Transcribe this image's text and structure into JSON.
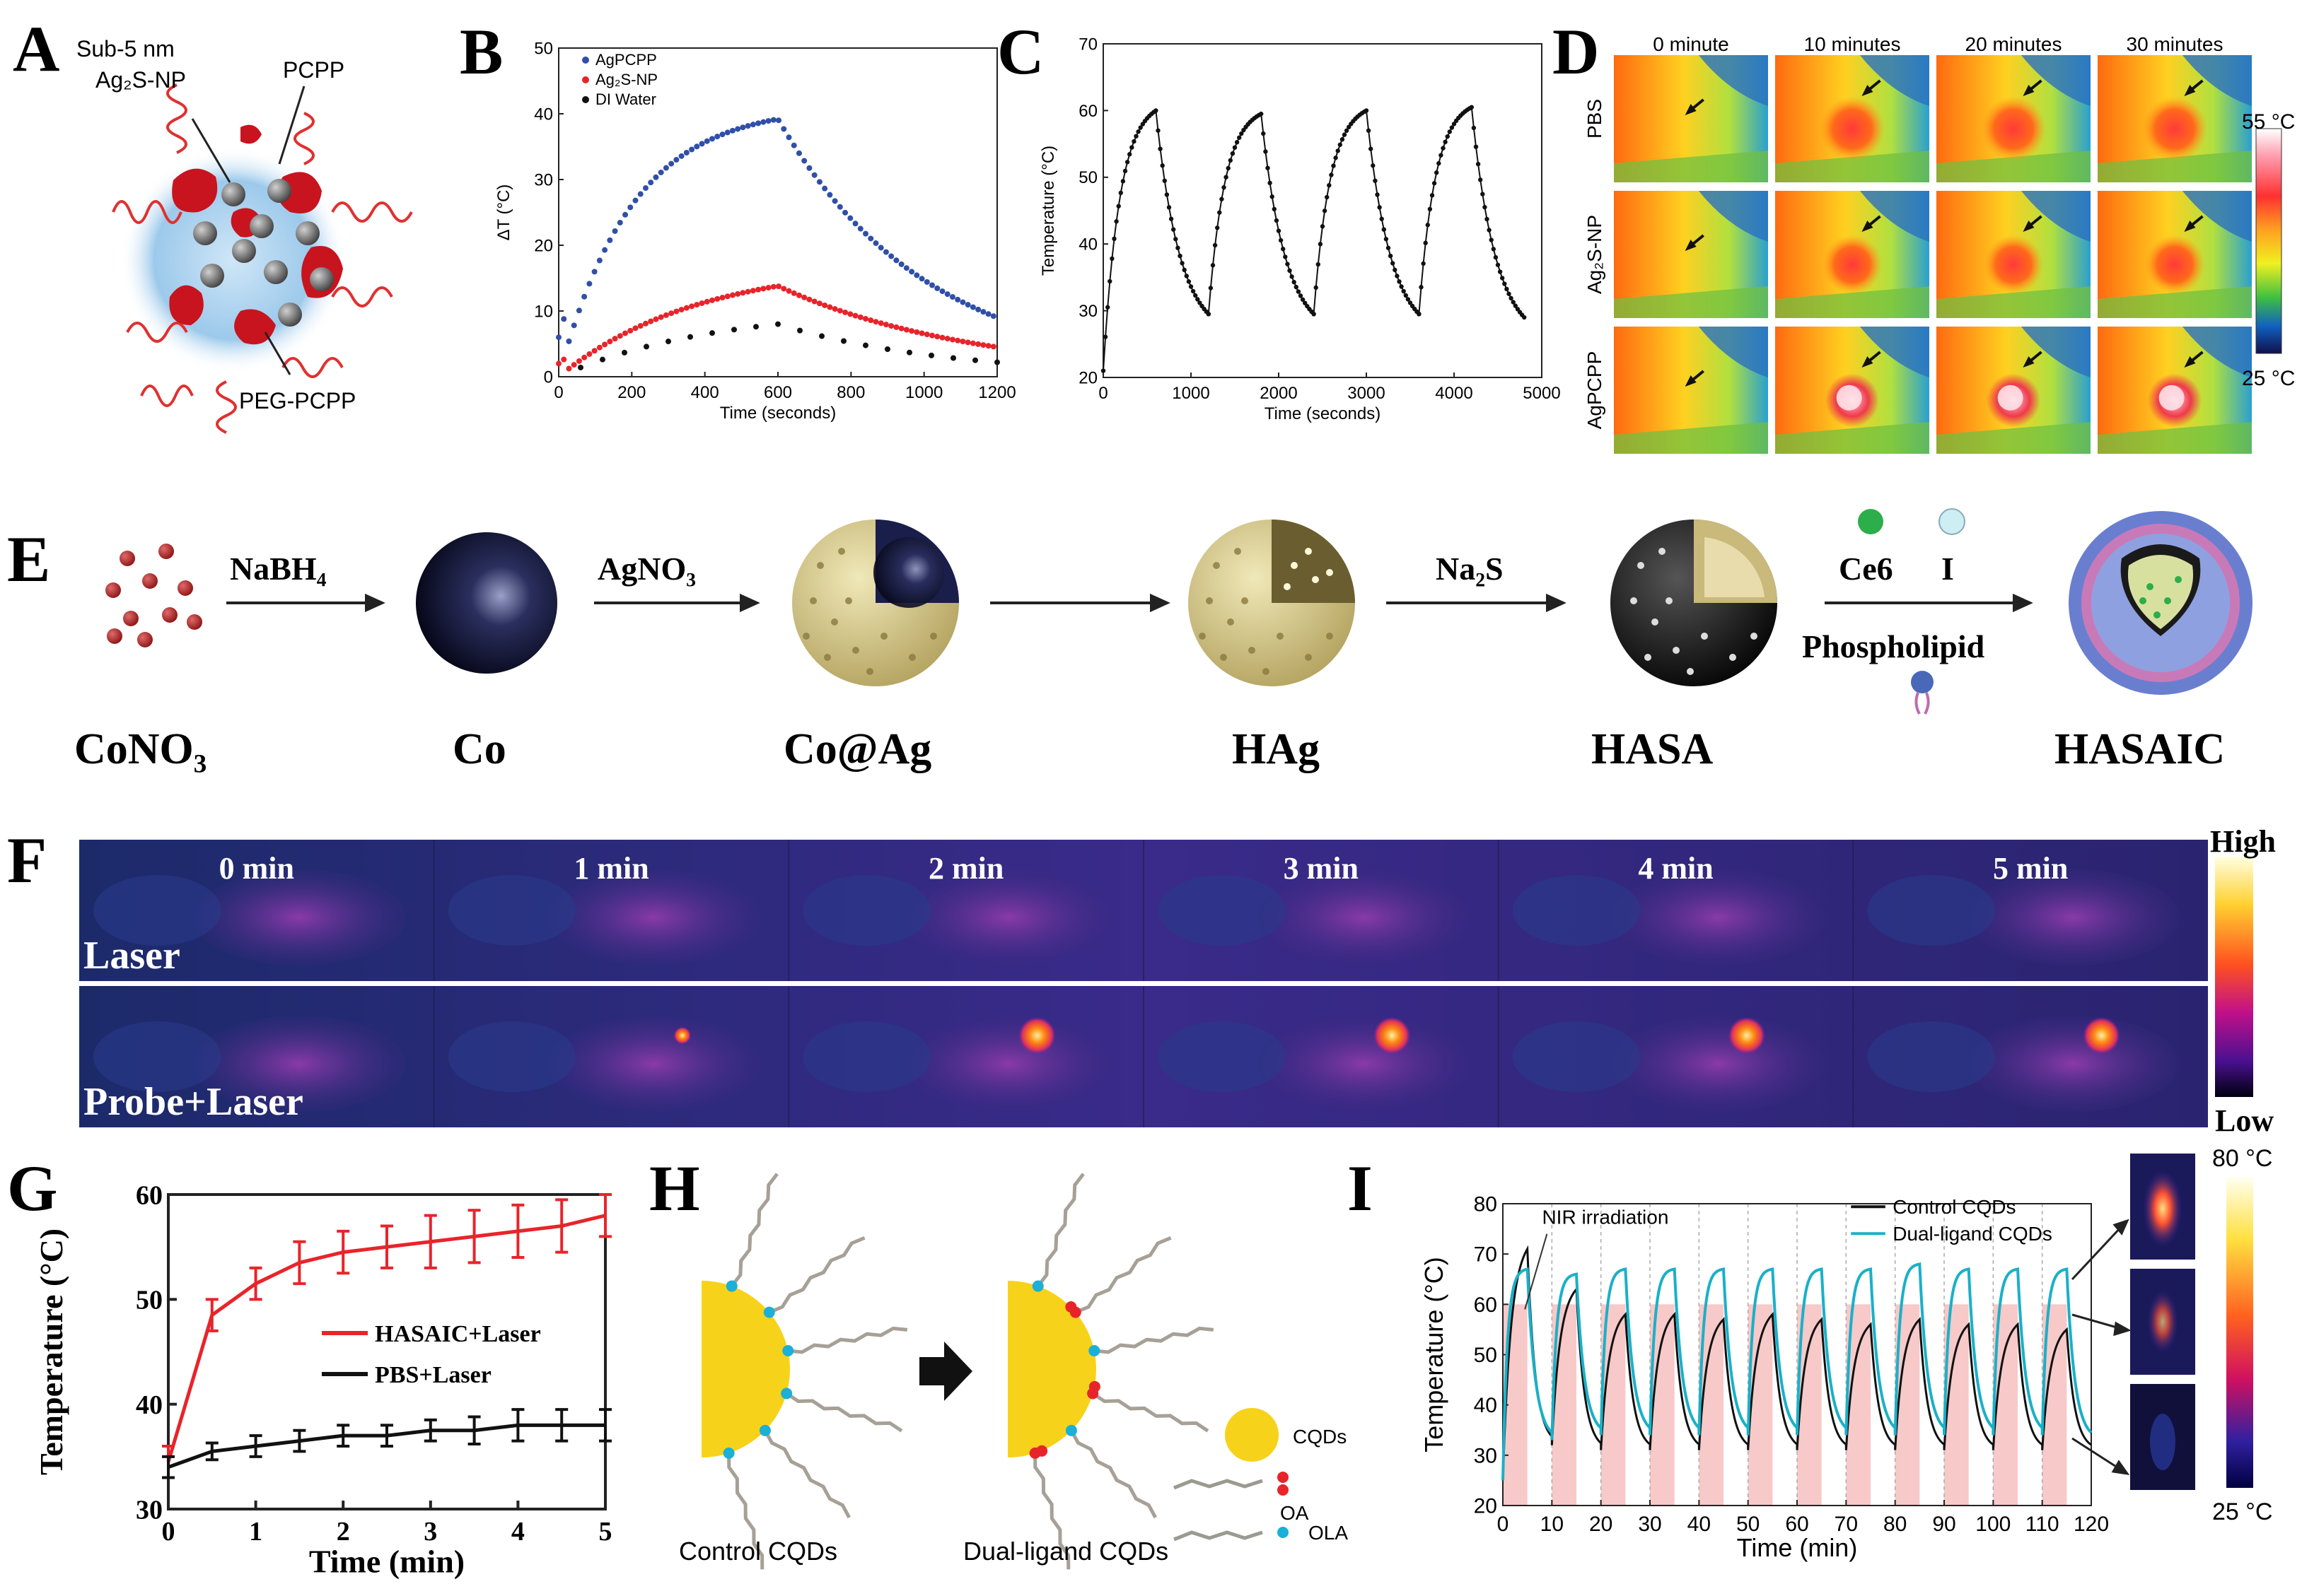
{
  "panels": {
    "A": "A",
    "B": "B",
    "C": "C",
    "D": "D",
    "E": "E",
    "F": "F",
    "G": "G",
    "H": "H",
    "I": "I"
  },
  "panel_a": {
    "label_np": "Sub-5 nm",
    "label_np2": "Ag₂S-NP",
    "label_pcpp": "PCPP",
    "label_peg": "PEG-PCPP"
  },
  "panel_d": {
    "columns": [
      "0 minute",
      "10 minutes",
      "20 minutes",
      "30 minutes"
    ],
    "rows": [
      "PBS",
      "Ag₂S-NP",
      "AgPCPP"
    ],
    "scale_max": "55 °C",
    "scale_min": "25 °C"
  },
  "panel_e": {
    "reagents": [
      "NaBH₄",
      "AgNO₃",
      "Na₂S",
      "Ce6",
      "I",
      "Phospholipid"
    ],
    "products": [
      "CoNO₃",
      "Co",
      "Co@Ag",
      "HAg",
      "HASA",
      "HASAIC"
    ]
  },
  "panel_f": {
    "times": [
      "0 min",
      "1 min",
      "2 min",
      "3 min",
      "4 min",
      "5 min"
    ],
    "rows": [
      "Laser",
      "Probe+Laser"
    ],
    "scale_high": "High",
    "scale_low": "Low"
  },
  "panel_h": {
    "label_left": "Control CQDs",
    "label_right": "Dual-ligand CQDs",
    "legend": [
      "CQDs",
      "OA",
      "OLA"
    ]
  },
  "panel_i_images": {
    "scale_max": "80 °C",
    "scale_min": "25 °C"
  },
  "colors": {
    "blue": "#2f4fa8",
    "red": "#e8242b",
    "black": "#111111",
    "cyan": "#1ab0c8",
    "shade": "#f7c9c9"
  },
  "chart_data": [
    {
      "id": "B",
      "type": "scatter",
      "xlabel": "Time (seconds)",
      "ylabel": "ΔT (°C)",
      "xlim": [
        0,
        1200
      ],
      "ylim": [
        0,
        50
      ],
      "xticks": [
        0,
        200,
        400,
        600,
        800,
        1000,
        1200
      ],
      "yticks": [
        0,
        10,
        20,
        30,
        40,
        50
      ],
      "legend": [
        "AgPCPP",
        "Ag₂S-NP",
        "DI Water"
      ],
      "series": [
        {
          "name": "AgPCPP",
          "heat_plateau": 39.2,
          "heat_tau": 200,
          "cool_tau": 420,
          "end": 9.0
        },
        {
          "name": "Ag₂S-NP",
          "heat_plateau": 13.8,
          "heat_tau": 380,
          "cool_tau": 420,
          "end": 4.5
        },
        {
          "name": "DI Water",
          "heat_plateau": 8.0,
          "heat_tau": 420,
          "cool_tau": 500,
          "end": 2.2
        }
      ]
    },
    {
      "id": "C",
      "type": "line",
      "xlabel": "Time (seconds)",
      "ylabel": "Temperature (°C)",
      "xlim": [
        0,
        5000
      ],
      "ylim": [
        20,
        70
      ],
      "xticks": [
        0,
        1000,
        2000,
        3000,
        4000,
        5000
      ],
      "yticks": [
        20,
        30,
        40,
        50,
        60,
        70
      ],
      "cycles": [
        {
          "start": 0,
          "peak_t": 600,
          "peak": 60,
          "end_t": 1200,
          "low": 29.5
        },
        {
          "start": 1200,
          "peak_t": 1800,
          "peak": 59.5,
          "end_t": 2400,
          "low": 29.5
        },
        {
          "start": 2400,
          "peak_t": 3000,
          "peak": 60,
          "end_t": 3600,
          "low": 29.5
        },
        {
          "start": 3600,
          "peak_t": 4200,
          "peak": 60.5,
          "end_t": 4800,
          "low": 29.0
        }
      ],
      "start_temp": 21
    },
    {
      "id": "G",
      "type": "line",
      "xlabel": "Time (min)",
      "ylabel": "Temperature (°C)",
      "xlim": [
        0,
        5
      ],
      "ylim": [
        30,
        60
      ],
      "xticks": [
        0,
        1,
        2,
        3,
        4,
        5
      ],
      "yticks": [
        30,
        40,
        50,
        60
      ],
      "x": [
        0,
        0.5,
        1,
        1.5,
        2,
        2.5,
        3,
        3.5,
        4,
        4.5,
        5
      ],
      "series": [
        {
          "name": "HASAIC+Laser",
          "values": [
            34.5,
            48.5,
            51.5,
            53.5,
            54.5,
            55,
            55.5,
            56,
            56.5,
            57,
            58
          ],
          "errors": [
            1.5,
            1.5,
            1.5,
            2,
            2,
            2,
            2.5,
            2.5,
            2.5,
            2.5,
            2
          ]
        },
        {
          "name": "PBS+Laser",
          "values": [
            34,
            35.5,
            36,
            36.5,
            37,
            37,
            37.5,
            37.5,
            38,
            38,
            38
          ],
          "errors": [
            1,
            0.8,
            1,
            1,
            1,
            1,
            1,
            1.3,
            1.5,
            1.5,
            1.5
          ]
        }
      ]
    },
    {
      "id": "I",
      "type": "line",
      "xlabel": "Time (min)",
      "ylabel": "Temperature (°C)",
      "xlim": [
        0,
        120
      ],
      "ylim": [
        20,
        80
      ],
      "xticks": [
        0,
        10,
        20,
        30,
        40,
        50,
        60,
        70,
        80,
        90,
        100,
        110,
        120
      ],
      "yticks": [
        20,
        30,
        40,
        50,
        60,
        70,
        80
      ],
      "annotation": "NIR irradiation",
      "legend": [
        "Control CQDs",
        "Dual-ligand CQDs"
      ],
      "irradiation_start": [
        0,
        10,
        20,
        30,
        40,
        50,
        60,
        70,
        80,
        90,
        100,
        110
      ],
      "irradiation_len": 5,
      "shade_top": 60,
      "control_peaks": [
        71,
        63,
        58,
        58,
        57,
        58,
        57,
        56,
        57,
        56,
        56,
        55
      ],
      "dual_peaks": [
        67,
        66,
        67,
        67,
        67,
        67,
        67,
        67,
        68,
        67,
        67,
        67
      ],
      "control_lows": [
        32,
        31,
        31,
        31,
        31,
        31,
        31,
        31,
        31,
        31,
        31,
        31
      ],
      "dual_lows": [
        33,
        34,
        34,
        34,
        34,
        34,
        34,
        34,
        34,
        34,
        34,
        33
      ]
    }
  ]
}
